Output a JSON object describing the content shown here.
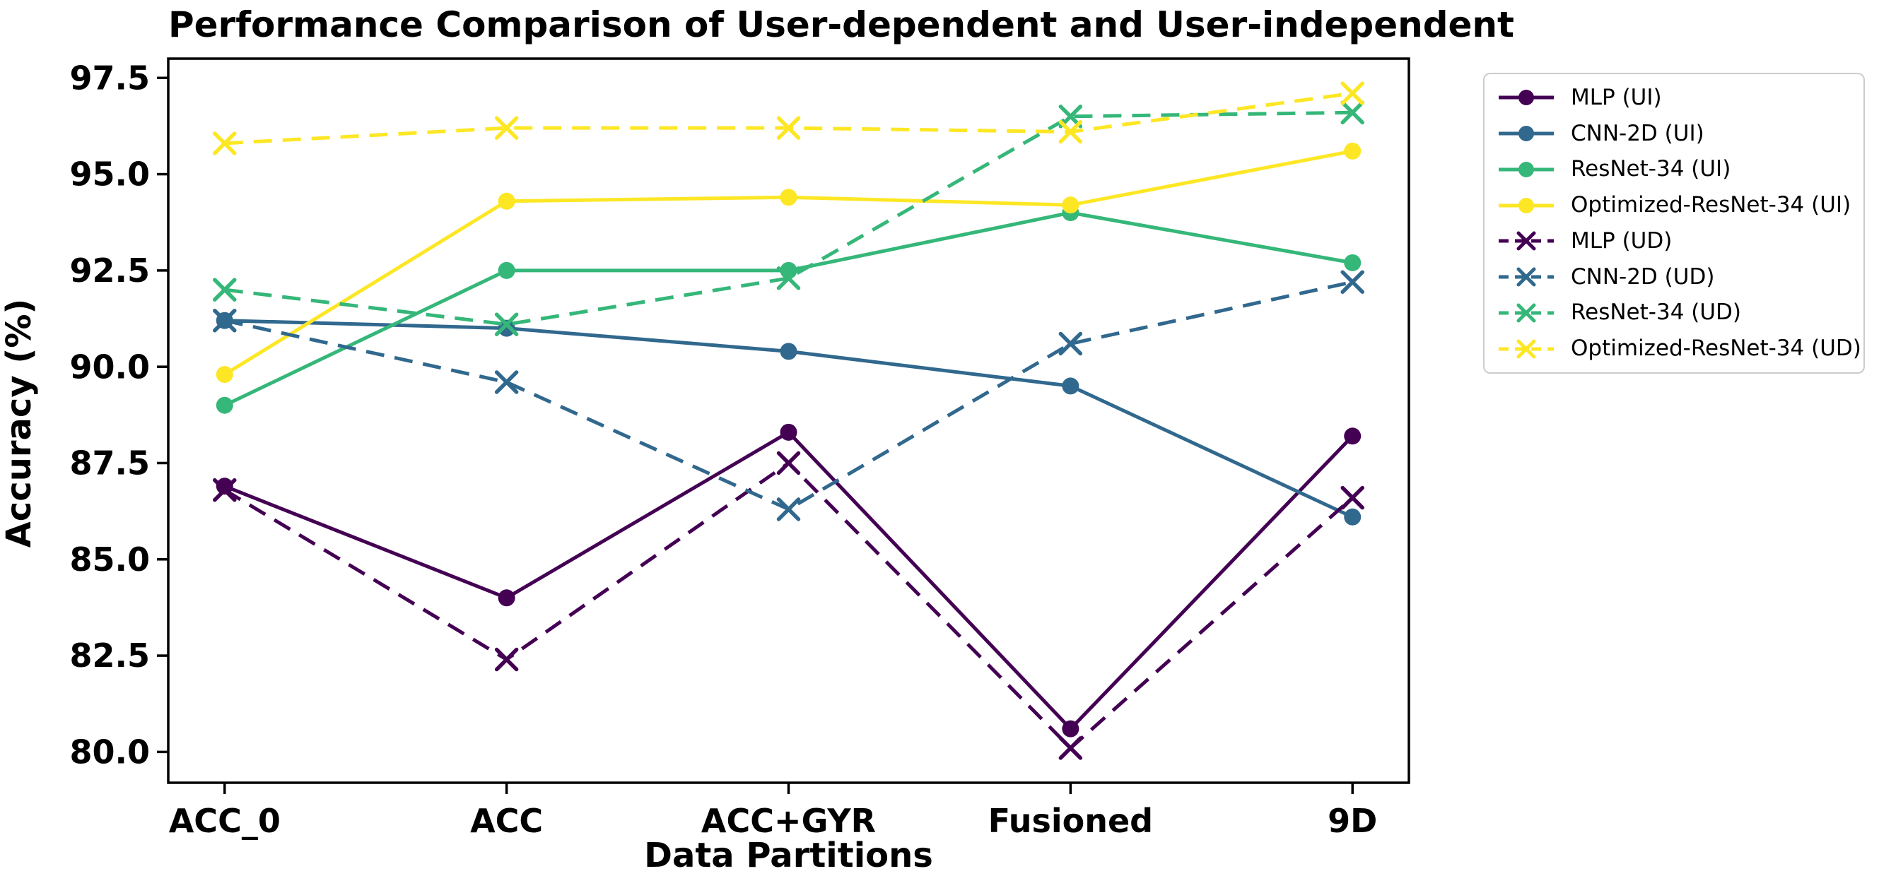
{
  "title": "Performance Comparison of User-dependent and User-independent",
  "chart_data": {
    "type": "line",
    "categories": [
      "ACC_0",
      "ACC",
      "ACC+GYR",
      "Fusioned",
      "9D"
    ],
    "xlabel": "Data Partitions",
    "ylabel": "Accuracy (%)",
    "ylim": [
      79.2,
      98.0
    ],
    "yticks": [
      80.0,
      82.5,
      85.0,
      87.5,
      90.0,
      92.5,
      95.0,
      97.5
    ],
    "x_margin": 0.2,
    "grid": false,
    "legend_position": "outside upper right",
    "axis_color": "#000000",
    "series": [
      {
        "name": "MLP (UI)",
        "color": "#440154",
        "style": "solid",
        "marker": "circle",
        "values": [
          86.9,
          84.0,
          88.3,
          80.6,
          88.2
        ]
      },
      {
        "name": "CNN-2D (UI)",
        "color": "#31688e",
        "style": "solid",
        "marker": "circle",
        "values": [
          91.2,
          91.0,
          90.4,
          89.5,
          86.1
        ]
      },
      {
        "name": "ResNet-34 (UI)",
        "color": "#35b779",
        "style": "solid",
        "marker": "circle",
        "values": [
          89.0,
          92.5,
          92.5,
          94.0,
          92.7
        ]
      },
      {
        "name": "Optimized-ResNet-34 (UI)",
        "color": "#fde725",
        "style": "solid",
        "marker": "circle",
        "values": [
          89.8,
          94.3,
          94.4,
          94.2,
          95.6
        ]
      },
      {
        "name": "MLP (UD)",
        "color": "#440154",
        "style": "dashed",
        "marker": "x",
        "values": [
          86.8,
          82.4,
          87.5,
          80.1,
          86.6
        ]
      },
      {
        "name": "CNN-2D (UD)",
        "color": "#31688e",
        "style": "dashed",
        "marker": "x",
        "values": [
          91.2,
          89.6,
          86.3,
          90.6,
          92.2
        ]
      },
      {
        "name": "ResNet-34 (UD)",
        "color": "#35b779",
        "style": "dashed",
        "marker": "x",
        "values": [
          92.0,
          91.1,
          92.3,
          96.5,
          96.6
        ]
      },
      {
        "name": "Optimized-ResNet-34 (UD)",
        "color": "#fde725",
        "style": "dashed",
        "marker": "x",
        "values": [
          95.8,
          96.2,
          96.2,
          96.1,
          97.1
        ]
      }
    ]
  }
}
